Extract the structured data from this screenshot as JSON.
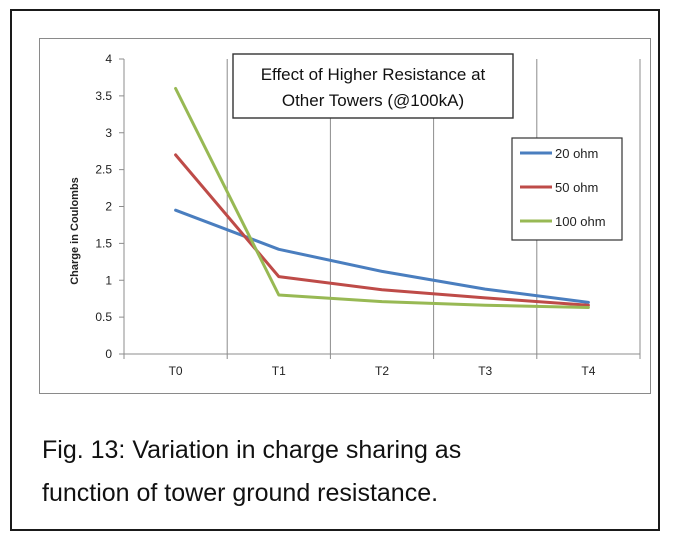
{
  "chart_data": {
    "type": "line",
    "title_lines": [
      "Effect of Higher Resistance at",
      "Other Towers  (@100kA)"
    ],
    "ylabel": "Charge in Coulombs",
    "xlabel": "",
    "categories": [
      "T0",
      "T1",
      "T2",
      "T3",
      "T4"
    ],
    "ylim": [
      0,
      4
    ],
    "yticks": [
      "0",
      "0.5",
      "1",
      "1.5",
      "2",
      "2.5",
      "3",
      "3.5",
      "4"
    ],
    "grid": "vertical",
    "legend_position": "right",
    "series": [
      {
        "name": "20 ohm",
        "color": "#4a7ebf",
        "values": [
          1.95,
          1.42,
          1.12,
          0.88,
          0.7
        ]
      },
      {
        "name": "50 ohm",
        "color": "#be4b48",
        "values": [
          2.7,
          1.05,
          0.87,
          0.76,
          0.66
        ]
      },
      {
        "name": "100 ohm",
        "color": "#98b954",
        "values": [
          3.6,
          0.8,
          0.71,
          0.66,
          0.63
        ]
      }
    ]
  },
  "caption": {
    "line1": "Fig. 13: Variation in charge sharing as",
    "line2": "function of tower ground resistance."
  }
}
